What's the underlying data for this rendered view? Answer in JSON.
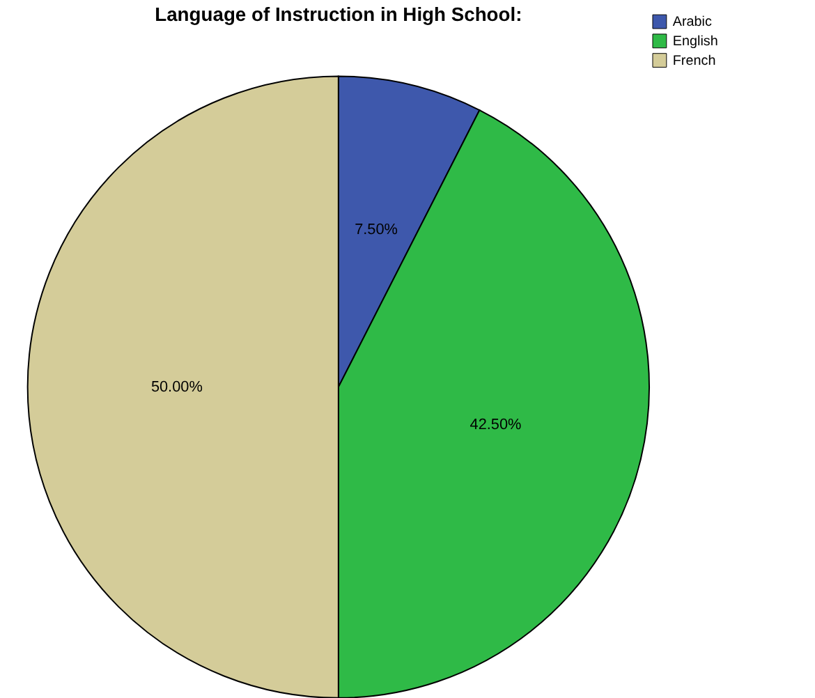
{
  "chart_data": {
    "type": "pie",
    "title": "Language of Instruction in High School:",
    "categories": [
      "Arabic",
      "English",
      "French"
    ],
    "values": [
      7.5,
      42.5,
      50
    ],
    "colors": [
      "#3e58ac",
      "#2fba47",
      "#d4cc99"
    ],
    "value_labels": [
      "7.50%",
      "42.50%",
      "50.00%"
    ],
    "legend": "top right"
  }
}
